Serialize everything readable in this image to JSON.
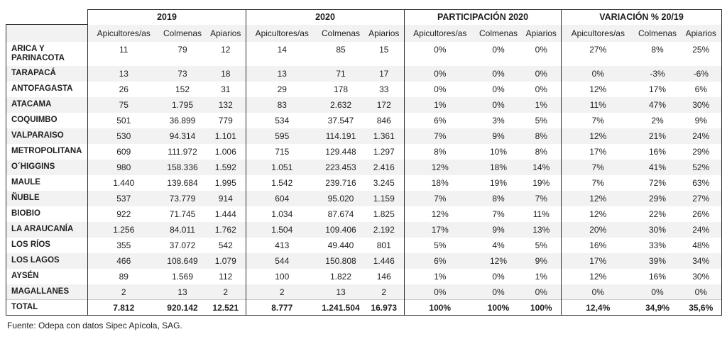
{
  "table": {
    "groups": [
      {
        "label": "2019"
      },
      {
        "label": "2020"
      },
      {
        "label": "PARTICIPACIÓN 2020"
      },
      {
        "label": "VARIACIÓN % 20/19"
      }
    ],
    "subheaders": [
      "Apicultores/as",
      "Colmenas",
      "Apiarios"
    ],
    "rows": [
      {
        "region": "ARICA Y PARINACOTA",
        "values": [
          "11",
          "79",
          "12",
          "14",
          "85",
          "15",
          "0%",
          "0%",
          "0%",
          "27%",
          "8%",
          "25%"
        ]
      },
      {
        "region": "TARAPACÁ",
        "values": [
          "13",
          "73",
          "18",
          "13",
          "71",
          "17",
          "0%",
          "0%",
          "0%",
          "0%",
          "-3%",
          "-6%"
        ]
      },
      {
        "region": "ANTOFAGASTA",
        "values": [
          "26",
          "152",
          "31",
          "29",
          "178",
          "33",
          "0%",
          "0%",
          "0%",
          "12%",
          "17%",
          "6%"
        ]
      },
      {
        "region": "ATACAMA",
        "values": [
          "75",
          "1.795",
          "132",
          "83",
          "2.632",
          "172",
          "1%",
          "0%",
          "1%",
          "11%",
          "47%",
          "30%"
        ]
      },
      {
        "region": "COQUIMBO",
        "values": [
          "501",
          "36.899",
          "779",
          "534",
          "37.547",
          "846",
          "6%",
          "3%",
          "5%",
          "7%",
          "2%",
          "9%"
        ]
      },
      {
        "region": "VALPARAISO",
        "values": [
          "530",
          "94.314",
          "1.101",
          "595",
          "114.191",
          "1.361",
          "7%",
          "9%",
          "8%",
          "12%",
          "21%",
          "24%"
        ]
      },
      {
        "region": "METROPOLITANA",
        "values": [
          "609",
          "111.972",
          "1.006",
          "715",
          "129.448",
          "1.297",
          "8%",
          "10%",
          "8%",
          "17%",
          "16%",
          "29%"
        ]
      },
      {
        "region": "O´HIGGINS",
        "values": [
          "980",
          "158.336",
          "1.592",
          "1.051",
          "223.453",
          "2.416",
          "12%",
          "18%",
          "14%",
          "7%",
          "41%",
          "52%"
        ]
      },
      {
        "region": "MAULE",
        "values": [
          "1.440",
          "139.684",
          "1.995",
          "1.542",
          "239.716",
          "3.245",
          "18%",
          "19%",
          "19%",
          "7%",
          "72%",
          "63%"
        ]
      },
      {
        "region": "ÑUBLE",
        "values": [
          "537",
          "73.779",
          "914",
          "604",
          "95.020",
          "1.159",
          "7%",
          "8%",
          "7%",
          "12%",
          "29%",
          "27%"
        ]
      },
      {
        "region": "BIOBIO",
        "values": [
          "922",
          "71.745",
          "1.444",
          "1.034",
          "87.674",
          "1.825",
          "12%",
          "7%",
          "11%",
          "12%",
          "22%",
          "26%"
        ]
      },
      {
        "region": "LA ARAUCANÍA",
        "values": [
          "1.256",
          "84.011",
          "1.762",
          "1.504",
          "109.406",
          "2.192",
          "17%",
          "9%",
          "13%",
          "20%",
          "30%",
          "24%"
        ]
      },
      {
        "region": "LOS RÍOS",
        "values": [
          "355",
          "37.072",
          "542",
          "413",
          "49.440",
          "801",
          "5%",
          "4%",
          "5%",
          "16%",
          "33%",
          "48%"
        ]
      },
      {
        "region": "LOS LAGOS",
        "values": [
          "466",
          "108.649",
          "1.079",
          "544",
          "150.808",
          "1.446",
          "6%",
          "12%",
          "9%",
          "17%",
          "39%",
          "34%"
        ]
      },
      {
        "region": "AYSÉN",
        "values": [
          "89",
          "1.569",
          "112",
          "100",
          "1.822",
          "146",
          "1%",
          "0%",
          "1%",
          "12%",
          "16%",
          "30%"
        ]
      },
      {
        "region": "MAGALLANES",
        "values": [
          "2",
          "13",
          "2",
          "2",
          "13",
          "2",
          "0%",
          "0%",
          "0%",
          "0%",
          "0%",
          "0%"
        ]
      }
    ],
    "total": {
      "region": "TOTAL",
      "values": [
        "7.812",
        "920.142",
        "12.521",
        "8.777",
        "1.241.504",
        "16.973",
        "100%",
        "100%",
        "100%",
        "12,4%",
        "34,9%",
        "35,6%"
      ]
    }
  },
  "footer": {
    "source": "Fuente: Odepa con datos Sipec Apícola, SAG."
  },
  "colors": {
    "stripe": "#f2f2f2",
    "border": "#2d2d2d",
    "text": "#1f1f1f"
  }
}
